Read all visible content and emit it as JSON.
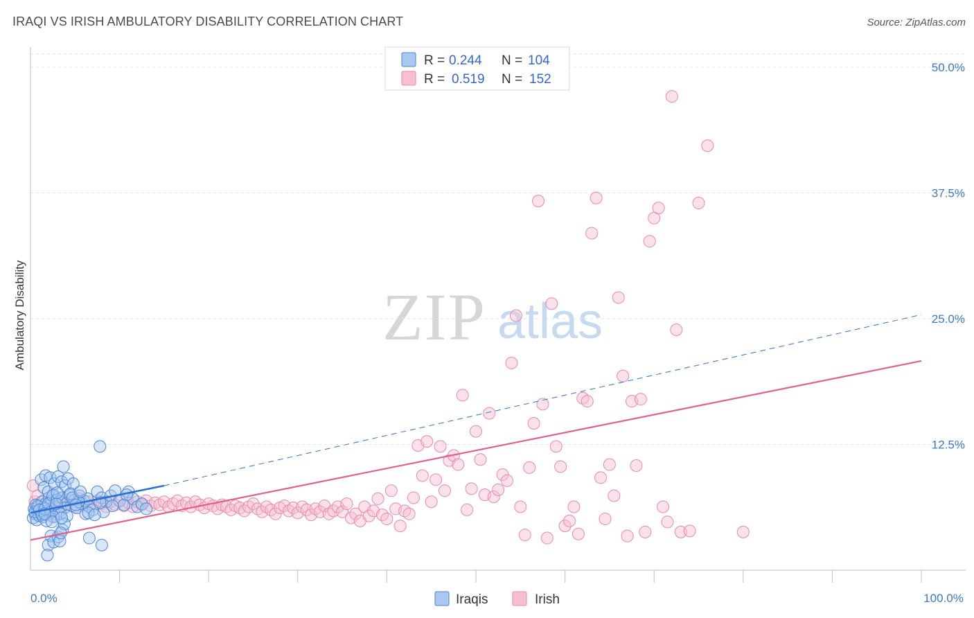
{
  "title": "IRAQI VS IRISH AMBULATORY DISABILITY CORRELATION CHART",
  "source": "Source: ZipAtlas.com",
  "watermark": {
    "zip": "ZIP",
    "atlas": "atlas"
  },
  "colors": {
    "iraqis_fill": "#a9c8f0",
    "iraqis_stroke": "#4a86d8",
    "iraqis_line": "#2e6fcf",
    "irish_fill": "#f7bfd0",
    "irish_stroke": "#e88aa8",
    "irish_line": "#e0608c",
    "grid": "#e3e3e3",
    "tick_text": "#3a78c9"
  },
  "stats": {
    "row1": {
      "r_label": "R =",
      "r_value": "0.244",
      "n_label": "N =",
      "n_value": "104"
    },
    "row2": {
      "r_label": "R =",
      "r_value": "0.519",
      "n_label": "N =",
      "n_value": "152"
    }
  },
  "legend": {
    "iraqis": "Iraqis",
    "irish": "Irish"
  },
  "chart_data": {
    "type": "scatter",
    "xlabel": "",
    "ylabel": "Ambulatory Disability",
    "xlim": [
      0,
      100
    ],
    "ylim": [
      0,
      52
    ],
    "x_tick_labels": [
      {
        "value": 0,
        "label": "0.0%"
      },
      {
        "value": 100,
        "label": "100.0%"
      }
    ],
    "x_minor_ticks": [
      10,
      20,
      30,
      40,
      50,
      60,
      70,
      80,
      90,
      100
    ],
    "y_ticks": [
      {
        "value": 12.5,
        "label": "12.5%"
      },
      {
        "value": 25.0,
        "label": "25.0%"
      },
      {
        "value": 37.5,
        "label": "37.5%"
      },
      {
        "value": 50.0,
        "label": "50.0%"
      }
    ],
    "series": [
      {
        "name": "Iraqis",
        "trend_solid": [
          [
            0,
            5.7
          ],
          [
            15,
            8.4
          ]
        ],
        "trend_dashed": [
          [
            15,
            8.4
          ],
          [
            100,
            25.4
          ]
        ],
        "points": [
          [
            0.3,
            5.2
          ],
          [
            0.4,
            6.1
          ],
          [
            0.5,
            5.6
          ],
          [
            0.6,
            6.5
          ],
          [
            0.7,
            5.0
          ],
          [
            0.8,
            5.9
          ],
          [
            0.9,
            6.3
          ],
          [
            1.0,
            5.4
          ],
          [
            1.1,
            6.0
          ],
          [
            1.2,
            5.7
          ],
          [
            1.3,
            6.8
          ],
          [
            1.4,
            5.3
          ],
          [
            1.5,
            6.2
          ],
          [
            1.6,
            5.8
          ],
          [
            1.7,
            6.6
          ],
          [
            1.8,
            5.5
          ],
          [
            1.9,
            6.4
          ],
          [
            2.0,
            5.9
          ],
          [
            2.1,
            7.2
          ],
          [
            2.2,
            5.6
          ],
          [
            2.3,
            6.1
          ],
          [
            2.4,
            6.9
          ],
          [
            2.5,
            5.4
          ],
          [
            2.6,
            7.5
          ],
          [
            0.5,
            5.8
          ],
          [
            0.8,
            6.4
          ],
          [
            1.0,
            6.0
          ],
          [
            1.3,
            5.5
          ],
          [
            1.6,
            6.1
          ],
          [
            2.0,
            6.6
          ],
          [
            2.3,
            5.8
          ],
          [
            2.8,
            6.2
          ],
          [
            1.2,
            9.0
          ],
          [
            1.5,
            8.2
          ],
          [
            1.7,
            9.4
          ],
          [
            2.0,
            7.8
          ],
          [
            2.2,
            9.2
          ],
          [
            2.5,
            7.4
          ],
          [
            2.7,
            8.6
          ],
          [
            3.0,
            7.0
          ],
          [
            3.1,
            9.3
          ],
          [
            3.3,
            6.8
          ],
          [
            3.5,
            8.8
          ],
          [
            3.6,
            7.2
          ],
          [
            3.7,
            10.3
          ],
          [
            3.9,
            8.4
          ],
          [
            4.0,
            6.6
          ],
          [
            4.2,
            9.1
          ],
          [
            4.4,
            7.5
          ],
          [
            4.6,
            6.4
          ],
          [
            4.8,
            8.6
          ],
          [
            5.0,
            7.0
          ],
          [
            5.2,
            6.2
          ],
          [
            5.5,
            7.4
          ],
          [
            5.8,
            6.6
          ],
          [
            6.0,
            6.9
          ],
          [
            6.2,
            5.6
          ],
          [
            6.4,
            7.1
          ],
          [
            6.6,
            6.3
          ],
          [
            5.4,
            6.8
          ],
          [
            4.5,
            7.6
          ],
          [
            3.8,
            6.2
          ],
          [
            3.2,
            5.8
          ],
          [
            2.9,
            6.6
          ],
          [
            3.4,
            5.6
          ],
          [
            2.6,
            5.3
          ],
          [
            1.8,
            4.9
          ],
          [
            4.1,
            5.4
          ],
          [
            3.0,
            7.7
          ],
          [
            4.7,
            7.2
          ],
          [
            5.1,
            6.5
          ],
          [
            5.6,
            7.8
          ],
          [
            2.0,
            2.5
          ],
          [
            1.9,
            1.5
          ],
          [
            2.3,
            3.4
          ],
          [
            2.6,
            2.8
          ],
          [
            3.1,
            3.3
          ],
          [
            3.3,
            2.9
          ],
          [
            3.6,
            4.0
          ],
          [
            3.8,
            4.6
          ],
          [
            3.4,
            3.7
          ],
          [
            2.4,
            4.8
          ],
          [
            3.5,
            5.2
          ],
          [
            1.6,
            5.6
          ],
          [
            7.5,
            7.8
          ],
          [
            8.0,
            7.2
          ],
          [
            8.5,
            6.8
          ],
          [
            9.0,
            7.4
          ],
          [
            9.5,
            7.9
          ],
          [
            10.0,
            6.9
          ],
          [
            10.5,
            6.5
          ],
          [
            11.0,
            7.8
          ],
          [
            11.5,
            7.1
          ],
          [
            12.0,
            6.3
          ],
          [
            12.5,
            6.6
          ],
          [
            13.0,
            6.1
          ],
          [
            7.0,
            6.0
          ],
          [
            8.2,
            5.8
          ],
          [
            6.5,
            5.7
          ],
          [
            9.2,
            6.4
          ],
          [
            10.8,
            7.5
          ],
          [
            7.8,
            6.7
          ],
          [
            6.6,
            3.2
          ],
          [
            8.0,
            2.5
          ],
          [
            7.2,
            5.5
          ],
          [
            7.8,
            12.3
          ]
        ]
      },
      {
        "name": "Irish",
        "trend": [
          [
            0,
            3.0
          ],
          [
            100,
            20.8
          ]
        ],
        "points": [
          [
            0.3,
            8.4
          ],
          [
            0.5,
            6.8
          ],
          [
            0.8,
            7.4
          ],
          [
            1.2,
            6.2
          ],
          [
            1.6,
            7.0
          ],
          [
            2.0,
            6.5
          ],
          [
            2.5,
            6.9
          ],
          [
            3.0,
            6.4
          ],
          [
            3.5,
            7.2
          ],
          [
            4.0,
            6.6
          ],
          [
            4.5,
            6.9
          ],
          [
            5.0,
            6.3
          ],
          [
            5.5,
            7.1
          ],
          [
            6.0,
            6.5
          ],
          [
            6.5,
            6.8
          ],
          [
            7.0,
            6.4
          ],
          [
            7.5,
            6.9
          ],
          [
            8.0,
            6.6
          ],
          [
            8.5,
            6.3
          ],
          [
            9.0,
            6.8
          ],
          [
            9.5,
            6.5
          ],
          [
            10.0,
            6.9
          ],
          [
            10.5,
            6.4
          ],
          [
            11.0,
            6.7
          ],
          [
            11.5,
            6.3
          ],
          [
            12.0,
            6.8
          ],
          [
            12.5,
            6.5
          ],
          [
            13.0,
            6.9
          ],
          [
            13.5,
            6.4
          ],
          [
            14.0,
            6.7
          ],
          [
            14.5,
            6.5
          ],
          [
            15.0,
            6.8
          ],
          [
            15.5,
            6.3
          ],
          [
            16.0,
            6.6
          ],
          [
            16.5,
            6.9
          ],
          [
            17.0,
            6.4
          ],
          [
            17.5,
            6.7
          ],
          [
            18.0,
            6.3
          ],
          [
            18.5,
            6.8
          ],
          [
            19.0,
            6.5
          ],
          [
            19.5,
            6.2
          ],
          [
            20.0,
            6.6
          ],
          [
            20.5,
            6.4
          ],
          [
            21.0,
            6.1
          ],
          [
            21.5,
            6.5
          ],
          [
            22.0,
            6.3
          ],
          [
            22.5,
            6.0
          ],
          [
            23.0,
            6.4
          ],
          [
            23.5,
            6.2
          ],
          [
            24.0,
            5.9
          ],
          [
            24.5,
            6.3
          ],
          [
            25.0,
            6.6
          ],
          [
            25.5,
            6.1
          ],
          [
            26.0,
            5.8
          ],
          [
            26.5,
            6.3
          ],
          [
            27.0,
            6.0
          ],
          [
            27.5,
            5.6
          ],
          [
            28.0,
            6.2
          ],
          [
            28.5,
            6.4
          ],
          [
            29.0,
            5.9
          ],
          [
            29.5,
            6.2
          ],
          [
            30.0,
            5.7
          ],
          [
            30.5,
            6.3
          ],
          [
            31.0,
            6.0
          ],
          [
            31.5,
            5.5
          ],
          [
            32.0,
            6.1
          ],
          [
            32.5,
            5.8
          ],
          [
            33.0,
            6.4
          ],
          [
            33.5,
            5.6
          ],
          [
            34.0,
            5.9
          ],
          [
            34.5,
            6.3
          ],
          [
            35.0,
            5.8
          ],
          [
            35.5,
            6.6
          ],
          [
            36.0,
            5.2
          ],
          [
            36.5,
            5.6
          ],
          [
            37.0,
            4.9
          ],
          [
            37.5,
            6.3
          ],
          [
            38.0,
            5.4
          ],
          [
            38.5,
            5.9
          ],
          [
            39.0,
            7.1
          ],
          [
            39.5,
            5.5
          ],
          [
            40.0,
            5.1
          ],
          [
            40.5,
            7.9
          ],
          [
            41.0,
            6.1
          ],
          [
            41.5,
            4.4
          ],
          [
            42.0,
            5.9
          ],
          [
            42.5,
            5.6
          ],
          [
            43.0,
            7.2
          ],
          [
            43.5,
            12.4
          ],
          [
            44.0,
            9.4
          ],
          [
            44.5,
            12.8
          ],
          [
            45.0,
            6.8
          ],
          [
            45.5,
            9.0
          ],
          [
            46.0,
            12.3
          ],
          [
            46.5,
            7.9
          ],
          [
            47.0,
            10.9
          ],
          [
            47.5,
            11.4
          ],
          [
            48.0,
            10.5
          ],
          [
            48.5,
            17.4
          ],
          [
            49.0,
            6.0
          ],
          [
            49.5,
            8.1
          ],
          [
            50.0,
            13.8
          ],
          [
            50.5,
            11.0
          ],
          [
            51.0,
            7.5
          ],
          [
            51.5,
            15.6
          ],
          [
            52.0,
            7.3
          ],
          [
            52.5,
            8.0
          ],
          [
            53.0,
            9.5
          ],
          [
            53.5,
            8.9
          ],
          [
            54.0,
            20.6
          ],
          [
            54.5,
            25.3
          ],
          [
            55.0,
            6.3
          ],
          [
            55.5,
            3.5
          ],
          [
            56.0,
            10.2
          ],
          [
            56.5,
            14.6
          ],
          [
            57.0,
            36.7
          ],
          [
            57.5,
            16.5
          ],
          [
            58.0,
            3.2
          ],
          [
            58.5,
            26.5
          ],
          [
            59.0,
            12.3
          ],
          [
            59.5,
            10.3
          ],
          [
            60.0,
            4.4
          ],
          [
            60.5,
            4.9
          ],
          [
            61.0,
            6.3
          ],
          [
            61.5,
            3.6
          ],
          [
            62.0,
            17.1
          ],
          [
            62.5,
            16.8
          ],
          [
            63.0,
            33.5
          ],
          [
            63.5,
            37.0
          ],
          [
            64.0,
            9.2
          ],
          [
            64.5,
            5.1
          ],
          [
            65.0,
            10.5
          ],
          [
            65.5,
            7.4
          ],
          [
            66.0,
            27.1
          ],
          [
            66.5,
            19.3
          ],
          [
            67.0,
            3.4
          ],
          [
            67.5,
            16.8
          ],
          [
            68.0,
            10.4
          ],
          [
            68.5,
            17.0
          ],
          [
            69.0,
            3.8
          ],
          [
            69.5,
            32.7
          ],
          [
            70.0,
            35.0
          ],
          [
            70.5,
            36.0
          ],
          [
            71.0,
            6.3
          ],
          [
            71.5,
            4.8
          ],
          [
            72.0,
            47.1
          ],
          [
            72.5,
            23.9
          ],
          [
            73.0,
            3.8
          ],
          [
            74.0,
            3.9
          ],
          [
            75.0,
            36.5
          ],
          [
            76.0,
            42.2
          ],
          [
            80.0,
            3.8
          ]
        ]
      }
    ]
  }
}
